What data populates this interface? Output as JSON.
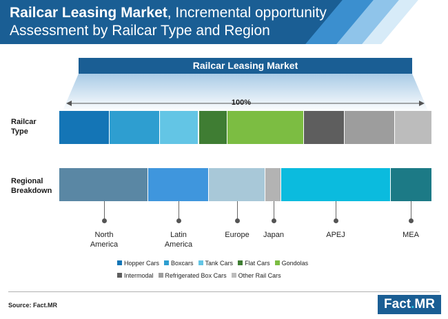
{
  "header": {
    "title_bold": "Railcar Leasing Market",
    "title_rest": ", Incremental opportunity Assessment by Railcar Type and Region"
  },
  "banner": {
    "label": "Railcar Leasing Market"
  },
  "total_label": "100%",
  "rows": {
    "type_label": [
      "Railcar",
      "Type"
    ],
    "region_label": [
      "Regional",
      "Breakdown"
    ]
  },
  "chart_data": [
    {
      "type": "bar",
      "orientation": "horizontal-stacked",
      "title": "Railcar Type",
      "total": "100%",
      "categories": [
        "Hopper Cars",
        "Boxcars",
        "Tank Cars",
        "Flat Cars",
        "Gondolas",
        "Intermodal",
        "Refrigerated Box Cars",
        "Other Rail Cars"
      ],
      "values": [
        13.5,
        13.5,
        10.5,
        7.7,
        20.5,
        11,
        13.4,
        9.9
      ],
      "colors": [
        "#1475b6",
        "#2e9ed0",
        "#63c5e5",
        "#3f7d33",
        "#7cbd42",
        "#5e5e5e",
        "#9d9d9d",
        "#bcbcbc"
      ]
    },
    {
      "type": "bar",
      "orientation": "horizontal-stacked",
      "title": "Regional Breakdown",
      "total": "100%",
      "categories": [
        "North America",
        "Latin America",
        "Europe",
        "Japan",
        "APEJ",
        "MEA"
      ],
      "labels": [
        [
          "North",
          "America"
        ],
        [
          "Latin",
          "America"
        ],
        [
          "Europe"
        ],
        [
          "Japan"
        ],
        [
          "APEJ"
        ],
        [
          "MEA"
        ]
      ],
      "values": [
        23.9,
        16.3,
        15.2,
        4.3,
        29.3,
        11
      ],
      "colors": [
        "#5a87a4",
        "#3f96dd",
        "#a8c8d8",
        "#b3b3b3",
        "#0bbbde",
        "#1c7a86"
      ]
    }
  ],
  "legend": {
    "rows": [
      [
        {
          "label": "Hopper Cars",
          "color": "#1475b6"
        },
        {
          "label": "Boxcars",
          "color": "#2e9ed0"
        },
        {
          "label": "Tank Cars",
          "color": "#63c5e5"
        },
        {
          "label": "Flat Cars",
          "color": "#3f7d33"
        },
        {
          "label": "Gondolas",
          "color": "#7cbd42"
        }
      ],
      [
        {
          "label": "Intermodal",
          "color": "#5e5e5e"
        },
        {
          "label": "Refrigerated Box Cars",
          "color": "#9d9d9d"
        },
        {
          "label": "Other Rail Cars",
          "color": "#bcbcbc"
        }
      ]
    ]
  },
  "footer": {
    "source": "Source: Fact.MR",
    "logo_left": "Fact",
    "logo_dot": ".",
    "logo_right": "MR"
  }
}
